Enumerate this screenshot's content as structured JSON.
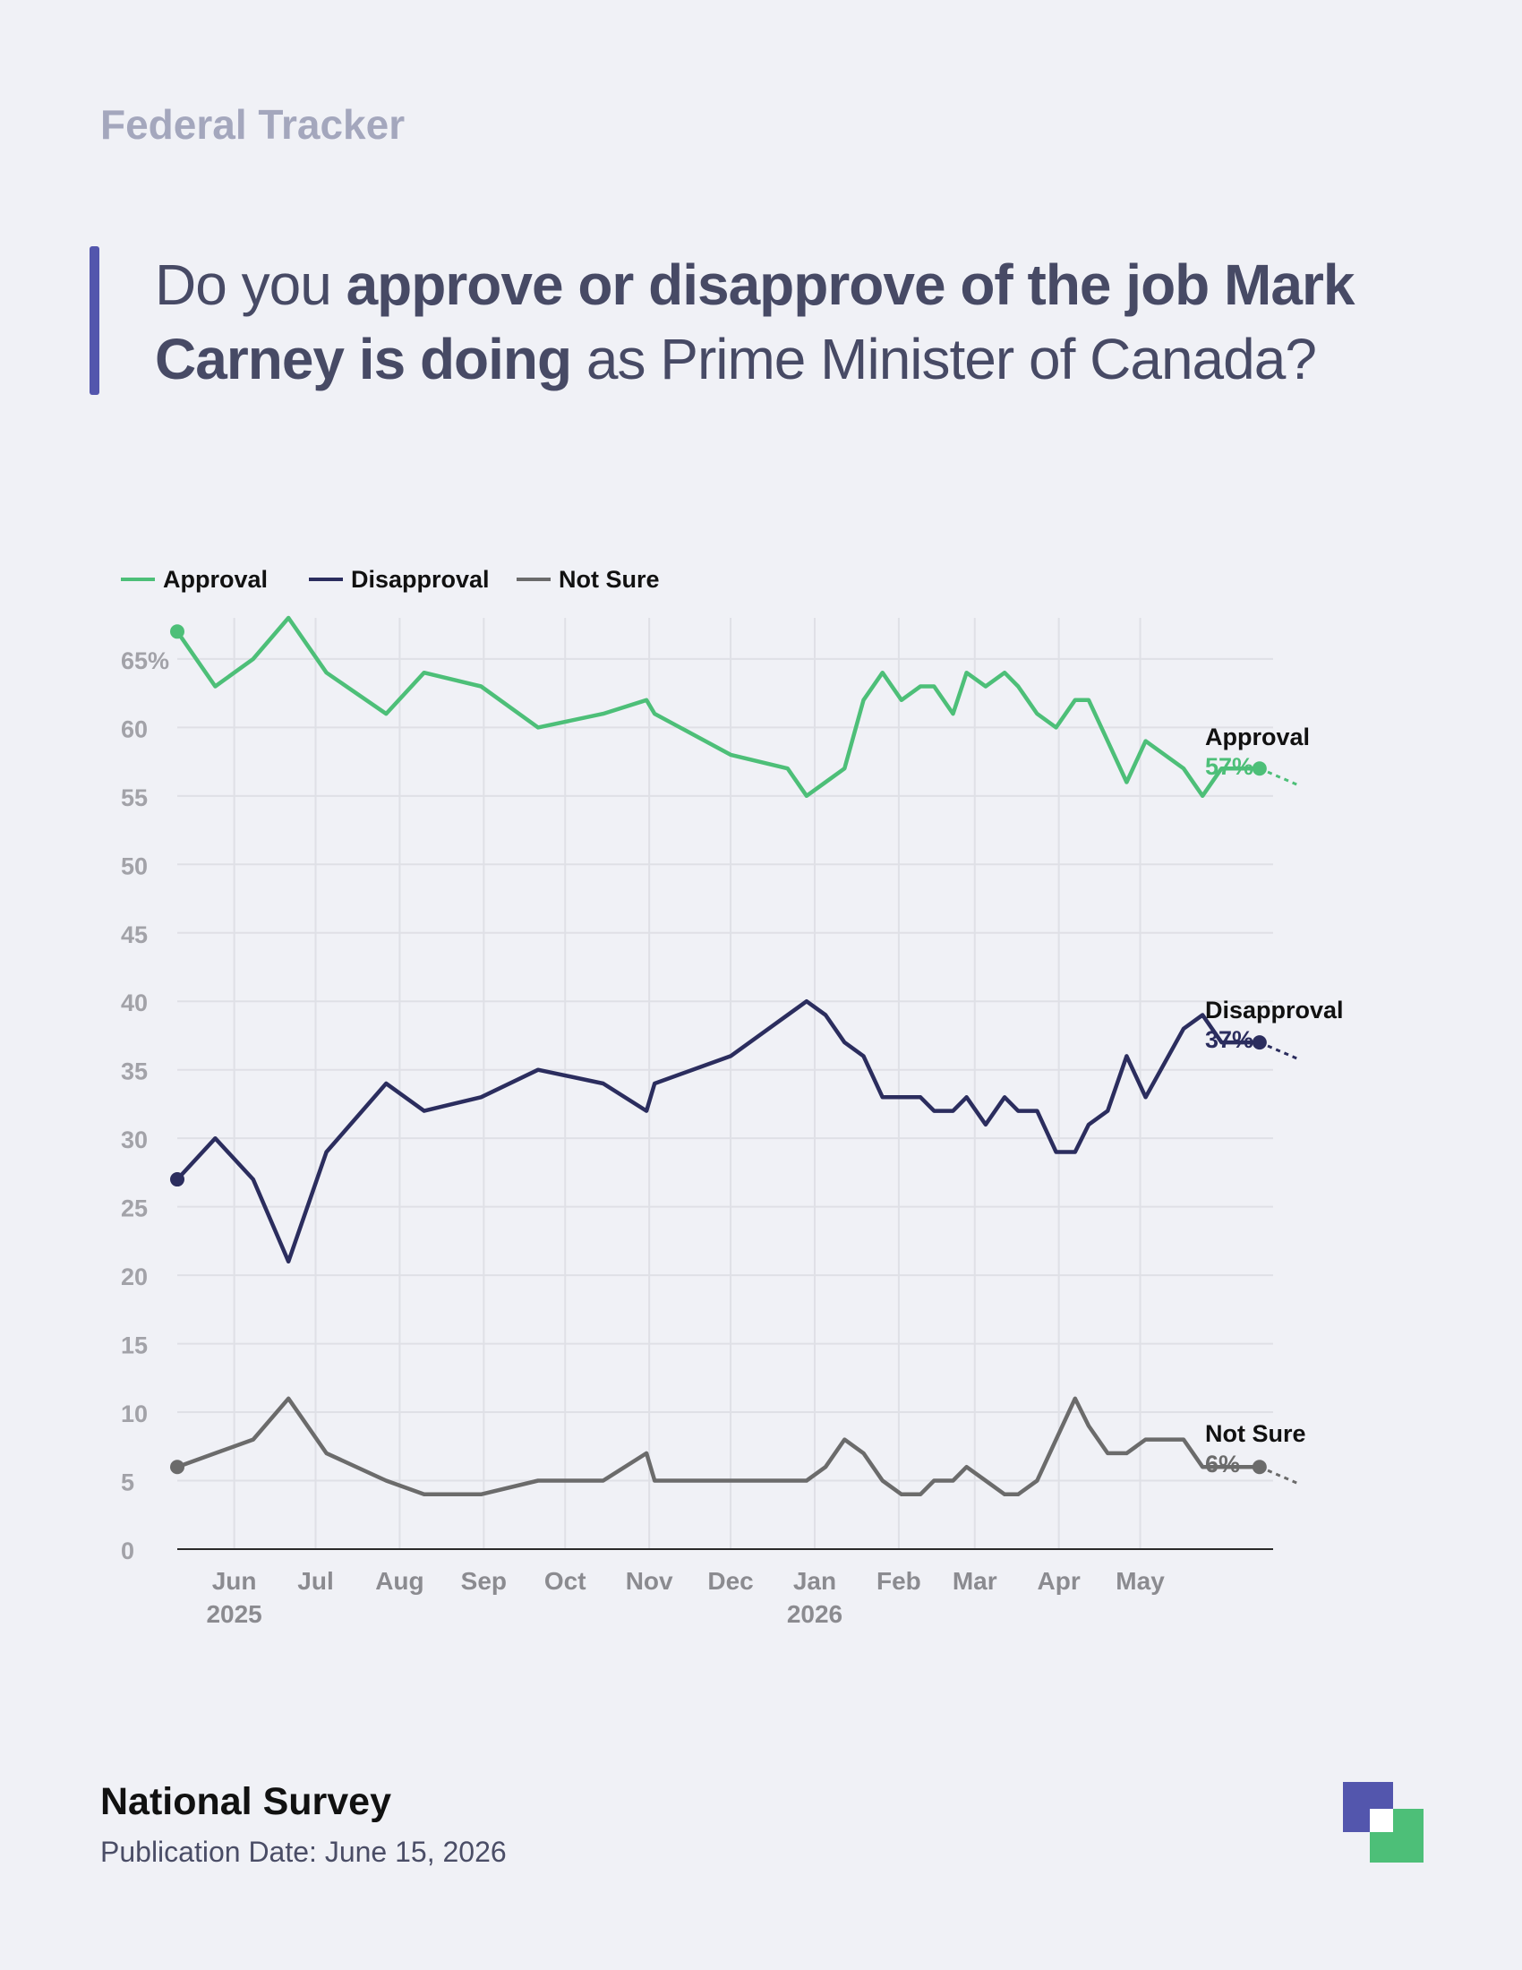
{
  "header": {
    "tracker": "Federal Tracker",
    "question_parts": [
      {
        "text": "Do you ",
        "bold": false
      },
      {
        "text": "approve or disapprove of the job Mark Carney is doing",
        "bold": true
      },
      {
        "text": " as Prime Minister of Canada?",
        "bold": false
      }
    ]
  },
  "colors": {
    "approval": "#4dbf78",
    "disapproval": "#2b2d5e",
    "not_sure": "#6b6b6b",
    "accent": "#5356ad",
    "logo_green": "#4dbf78"
  },
  "chart_data": {
    "type": "line",
    "title": "",
    "xlabel": "",
    "ylabel": "",
    "ylim": [
      0,
      68
    ],
    "yticks": [
      0,
      5,
      10,
      15,
      20,
      25,
      30,
      35,
      40,
      45,
      50,
      55,
      60,
      65
    ],
    "ytick_labels": [
      "0",
      "5",
      "10",
      "15",
      "20",
      "25",
      "30",
      "35",
      "40",
      "45",
      "50",
      "55",
      "60",
      "65%"
    ],
    "xlim": [
      "2025-05-11",
      "2026-06-19"
    ],
    "xticks": [
      {
        "date": "2025-06-01",
        "label": "Jun",
        "year": "2025"
      },
      {
        "date": "2025-07-01",
        "label": "Jul",
        "year": ""
      },
      {
        "date": "2025-08-01",
        "label": "Aug",
        "year": ""
      },
      {
        "date": "2025-09-01",
        "label": "Sep",
        "year": ""
      },
      {
        "date": "2025-10-01",
        "label": "Oct",
        "year": ""
      },
      {
        "date": "2025-11-01",
        "label": "Nov",
        "year": ""
      },
      {
        "date": "2025-12-01",
        "label": "Dec",
        "year": ""
      },
      {
        "date": "2026-01-01",
        "label": "Jan",
        "year": "2026"
      },
      {
        "date": "2026-02-01",
        "label": "Feb",
        "year": ""
      },
      {
        "date": "2026-03-01",
        "label": "Mar",
        "year": ""
      },
      {
        "date": "2026-04-01",
        "label": "Apr",
        "year": ""
      },
      {
        "date": "2026-05-01",
        "label": "May",
        "year": ""
      }
    ],
    "grid": true,
    "legend_position": "top-left",
    "x": [
      "2025-05-11",
      "2025-05-25",
      "2025-06-08",
      "2025-06-21",
      "2025-07-05",
      "2025-07-27",
      "2025-08-10",
      "2025-08-31",
      "2025-09-21",
      "2025-10-15",
      "2025-10-31",
      "2025-11-03",
      "2025-12-01",
      "2025-12-22",
      "2025-12-29",
      "2026-01-05",
      "2026-01-12",
      "2026-01-19",
      "2026-01-26",
      "2026-02-02",
      "2026-02-09",
      "2026-02-14",
      "2026-02-21",
      "2026-02-26",
      "2026-03-05",
      "2026-03-12",
      "2026-03-17",
      "2026-03-24",
      "2026-03-31",
      "2026-04-07",
      "2026-04-12",
      "2026-04-19",
      "2026-04-26",
      "2026-05-03",
      "2026-05-17",
      "2026-05-24",
      "2026-05-31",
      "2026-06-07",
      "2026-06-14"
    ],
    "series": [
      {
        "name": "Approval",
        "color_key": "approval",
        "end_label": "Approval",
        "end_value": "57%",
        "values": [
          67,
          63,
          65,
          68,
          64,
          61,
          64,
          63,
          60,
          61,
          62,
          61,
          58,
          57,
          55,
          56,
          57,
          62,
          64,
          62,
          63,
          63,
          61,
          64,
          63,
          64,
          63,
          61,
          60,
          62,
          62,
          59,
          56,
          59,
          57,
          55,
          57,
          57,
          57
        ]
      },
      {
        "name": "Disapproval",
        "color_key": "disapproval",
        "end_label": "Disapproval",
        "end_value": "37%",
        "values": [
          27,
          30,
          27,
          21,
          29,
          34,
          32,
          33,
          35,
          34,
          32,
          34,
          36,
          39,
          40,
          39,
          37,
          36,
          33,
          33,
          33,
          32,
          32,
          33,
          31,
          33,
          32,
          32,
          29,
          29,
          31,
          32,
          36,
          33,
          38,
          39,
          37,
          37,
          37
        ]
      },
      {
        "name": "Not Sure",
        "color_key": "not_sure",
        "end_label": "Not Sure",
        "end_value": "6%",
        "values": [
          6,
          7,
          8,
          11,
          7,
          5,
          4,
          4,
          5,
          5,
          7,
          5,
          5,
          5,
          5,
          6,
          8,
          7,
          5,
          4,
          4,
          5,
          5,
          6,
          5,
          4,
          4,
          5,
          8,
          11,
          9,
          7,
          7,
          8,
          8,
          6,
          6,
          6,
          6
        ]
      }
    ]
  },
  "footer": {
    "title": "National Survey",
    "date": "Publication Date: June 15, 2026"
  }
}
